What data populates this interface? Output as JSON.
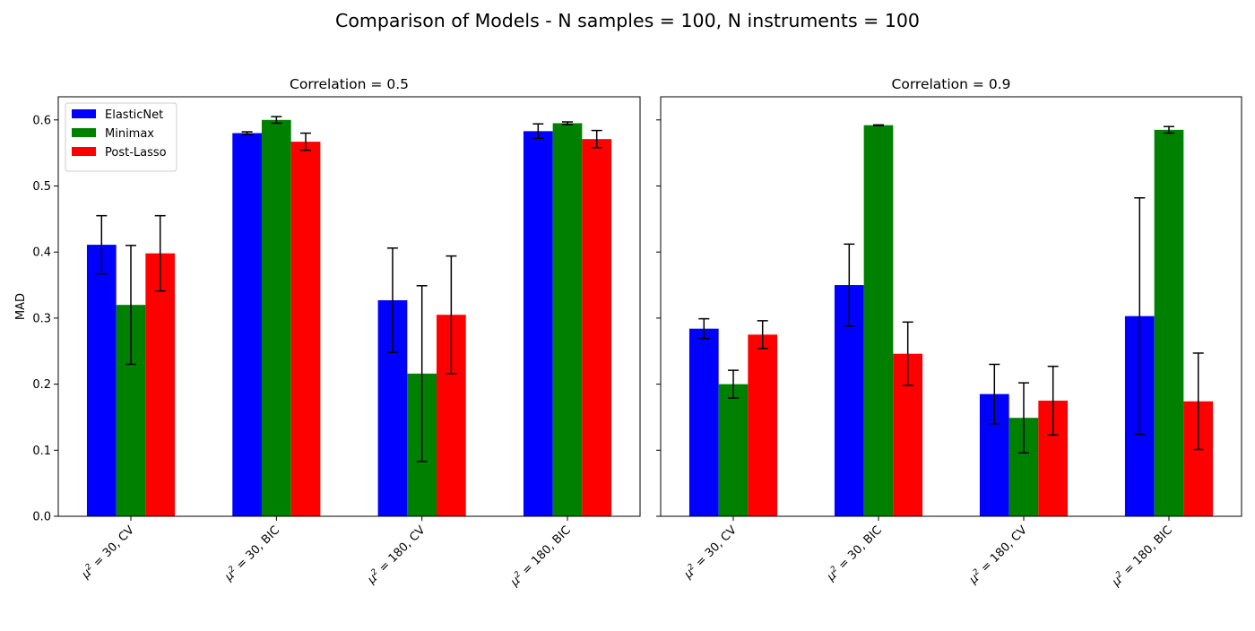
{
  "figure": {
    "title": "Comparison of Models - N samples = 100, N instruments = 100"
  },
  "legend": {
    "placement": "top-left",
    "entries": [
      {
        "name": "ElasticNet",
        "color": "#0000ff"
      },
      {
        "name": "Minimax",
        "color": "#008000"
      },
      {
        "name": "Post-Lasso",
        "color": "#ff0000"
      }
    ]
  },
  "chart_data": [
    {
      "type": "bar",
      "title": "Correlation = 0.5",
      "ylabel": "MAD",
      "xlabel": "",
      "ylim": [
        0,
        0.635
      ],
      "yticks": [
        0.0,
        0.1,
        0.2,
        0.3,
        0.4,
        0.5,
        0.6
      ],
      "ytick_labels": [
        "0.0",
        "0.1",
        "0.2",
        "0.3",
        "0.4",
        "0.5",
        "0.6"
      ],
      "grid": false,
      "error_bars": true,
      "categories": [
        {
          "mu_label": "μ",
          "sup": "2",
          "rest": " = 30, CV"
        },
        {
          "mu_label": "μ",
          "sup": "2",
          "rest": " = 30, BIC"
        },
        {
          "mu_label": "μ",
          "sup": "2",
          "rest": " = 180, CV"
        },
        {
          "mu_label": "μ",
          "sup": "2",
          "rest": " = 180, BIC"
        }
      ],
      "series": [
        {
          "name": "ElasticNet",
          "color": "#0000ff",
          "values": [
            0.411,
            0.58,
            0.327,
            0.583
          ],
          "errors": [
            0.044,
            0.002,
            0.079,
            0.011
          ]
        },
        {
          "name": "Minimax",
          "color": "#008000",
          "values": [
            0.32,
            0.6,
            0.216,
            0.595
          ],
          "errors": [
            0.09,
            0.005,
            0.133,
            0.002
          ]
        },
        {
          "name": "Post-Lasso",
          "color": "#ff0000",
          "values": [
            0.398,
            0.567,
            0.305,
            0.571
          ],
          "errors": [
            0.057,
            0.013,
            0.089,
            0.013
          ]
        }
      ]
    },
    {
      "type": "bar",
      "title": "Correlation = 0.9",
      "ylabel": "",
      "xlabel": "",
      "ylim": [
        0,
        0.635
      ],
      "yticks": [
        0.0,
        0.1,
        0.2,
        0.3,
        0.4,
        0.5,
        0.6
      ],
      "ytick_labels": [],
      "grid": false,
      "error_bars": true,
      "categories": [
        {
          "mu_label": "μ",
          "sup": "2",
          "rest": " = 30, CV"
        },
        {
          "mu_label": "μ",
          "sup": "2",
          "rest": " = 30, BIC"
        },
        {
          "mu_label": "μ",
          "sup": "2",
          "rest": " = 180, CV"
        },
        {
          "mu_label": "μ",
          "sup": "2",
          "rest": " = 180, BIC"
        }
      ],
      "series": [
        {
          "name": "ElasticNet",
          "color": "#0000ff",
          "values": [
            0.284,
            0.35,
            0.185,
            0.303
          ],
          "errors": [
            0.015,
            0.062,
            0.045,
            0.179
          ]
        },
        {
          "name": "Minimax",
          "color": "#008000",
          "values": [
            0.2,
            0.592,
            0.149,
            0.585
          ],
          "errors": [
            0.021,
            0.0005,
            0.053,
            0.005
          ]
        },
        {
          "name": "Post-Lasso",
          "color": "#ff0000",
          "values": [
            0.275,
            0.246,
            0.175,
            0.174
          ],
          "errors": [
            0.021,
            0.048,
            0.052,
            0.073
          ]
        }
      ]
    }
  ]
}
